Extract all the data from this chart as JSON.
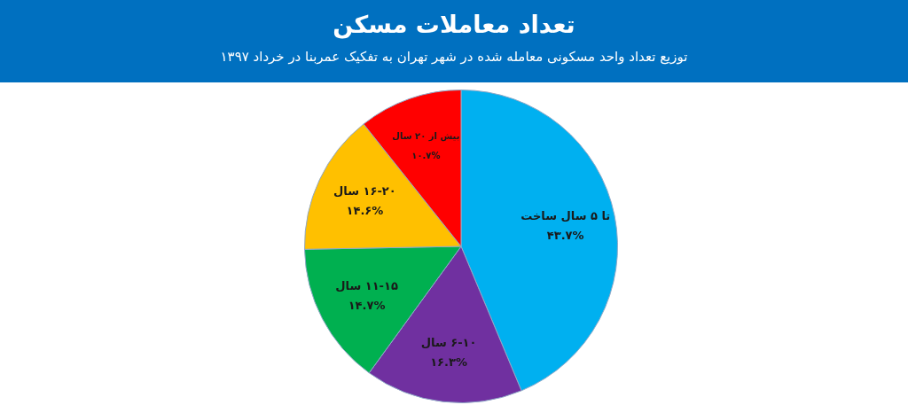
{
  "chart_data": {
    "type": "pie",
    "title": "تعداد معاملات مسکن",
    "subtitle": "توزیع تعداد واحد مسکونی معامله شده در شهر تهران به تفکیک عمربنا در خرداد ۱۳۹۷",
    "categories": [
      "تا ۵ سال ساخت",
      "۶-۱۰ سال",
      "۱۱-۱۵ سال",
      "۱۶-۲۰ سال",
      "بیش از ۲۰ سال"
    ],
    "values": [
      43.7,
      16.3,
      14.7,
      14.6,
      10.7
    ],
    "value_labels": [
      "۴۳.۷%",
      "۱۶.۳%",
      "۱۴.۷%",
      "۱۴.۶%",
      "۱۰.۷%"
    ],
    "colors": [
      "#00b0f0",
      "#7030a0",
      "#00b050",
      "#ffc000",
      "#ff0000"
    ],
    "legend": false
  }
}
